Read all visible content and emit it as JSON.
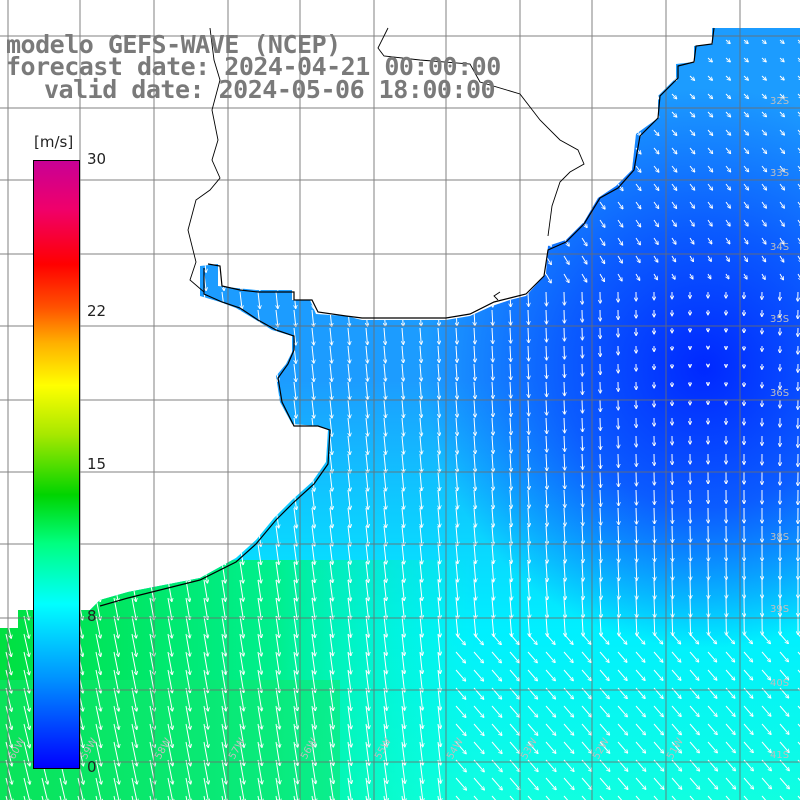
{
  "title": {
    "line1": "modelo GEFS-WAVE (NCEP)",
    "line2": "forecast date: 2024-04-21 00:00:00",
    "line3": "valid date: 2024-05-06 18:00:00"
  },
  "colorbar": {
    "unit": "[m/s]",
    "ticks": [
      "30",
      "22",
      "15",
      "8",
      "0"
    ],
    "tick_values": [
      30,
      22,
      15,
      8,
      0
    ],
    "range": [
      0,
      30
    ],
    "colors": [
      "#0000ff",
      "#0095ff",
      "#00ffff",
      "#00ff80",
      "#00d400",
      "#ffff00",
      "#ff5000",
      "#ff0000",
      "#c80096"
    ]
  },
  "lat_labels": [
    "32S",
    "33S",
    "34S",
    "35S",
    "36S",
    "38S",
    "39S",
    "40S",
    "41S"
  ],
  "lon_labels": [
    "60W",
    "59W",
    "58W",
    "57W",
    "56W",
    "55W",
    "54W",
    "53W",
    "52W",
    "51W"
  ],
  "field": {
    "variable": "wind speed",
    "dominant_direction": "south-southwest",
    "min_region": "dark blue near 35S 51W",
    "max_region": "green south-west corner"
  }
}
